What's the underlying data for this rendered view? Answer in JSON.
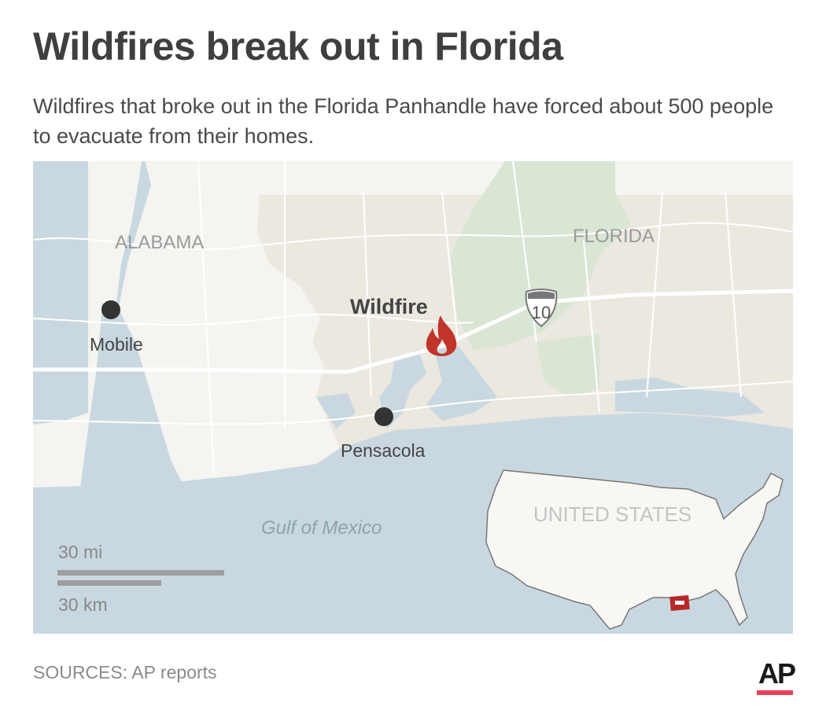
{
  "header": {
    "title": "Wildfires break out in Florida",
    "subtitle": "Wildfires that broke out in the Florida Panhandle have forced about 500 people to evacuate from their homes."
  },
  "map": {
    "labels": {
      "alabama": "ALABAMA",
      "florida": "FLORIDA",
      "wildfire": "Wildfire",
      "gulf": "Gulf of Mexico",
      "mobile": "Mobile",
      "pensacola": "Pensacola",
      "interstate": "10"
    },
    "scale": {
      "miles": "30 mi",
      "km": "30 km"
    },
    "inset": {
      "label": "UNITED STATES"
    },
    "icons": [
      "fire-icon",
      "interstate-shield-icon",
      "city-dot-icon"
    ],
    "colors": {
      "water": "#c9d8e0",
      "florida_land": "#ebe8e0",
      "alabama_land": "#f5f4f1",
      "forest": "#d9e6d4",
      "fire": "#c0342a",
      "inset_marker": "#b8282a"
    }
  },
  "footer": {
    "source": "SOURCES: AP reports",
    "logo": "AP"
  }
}
